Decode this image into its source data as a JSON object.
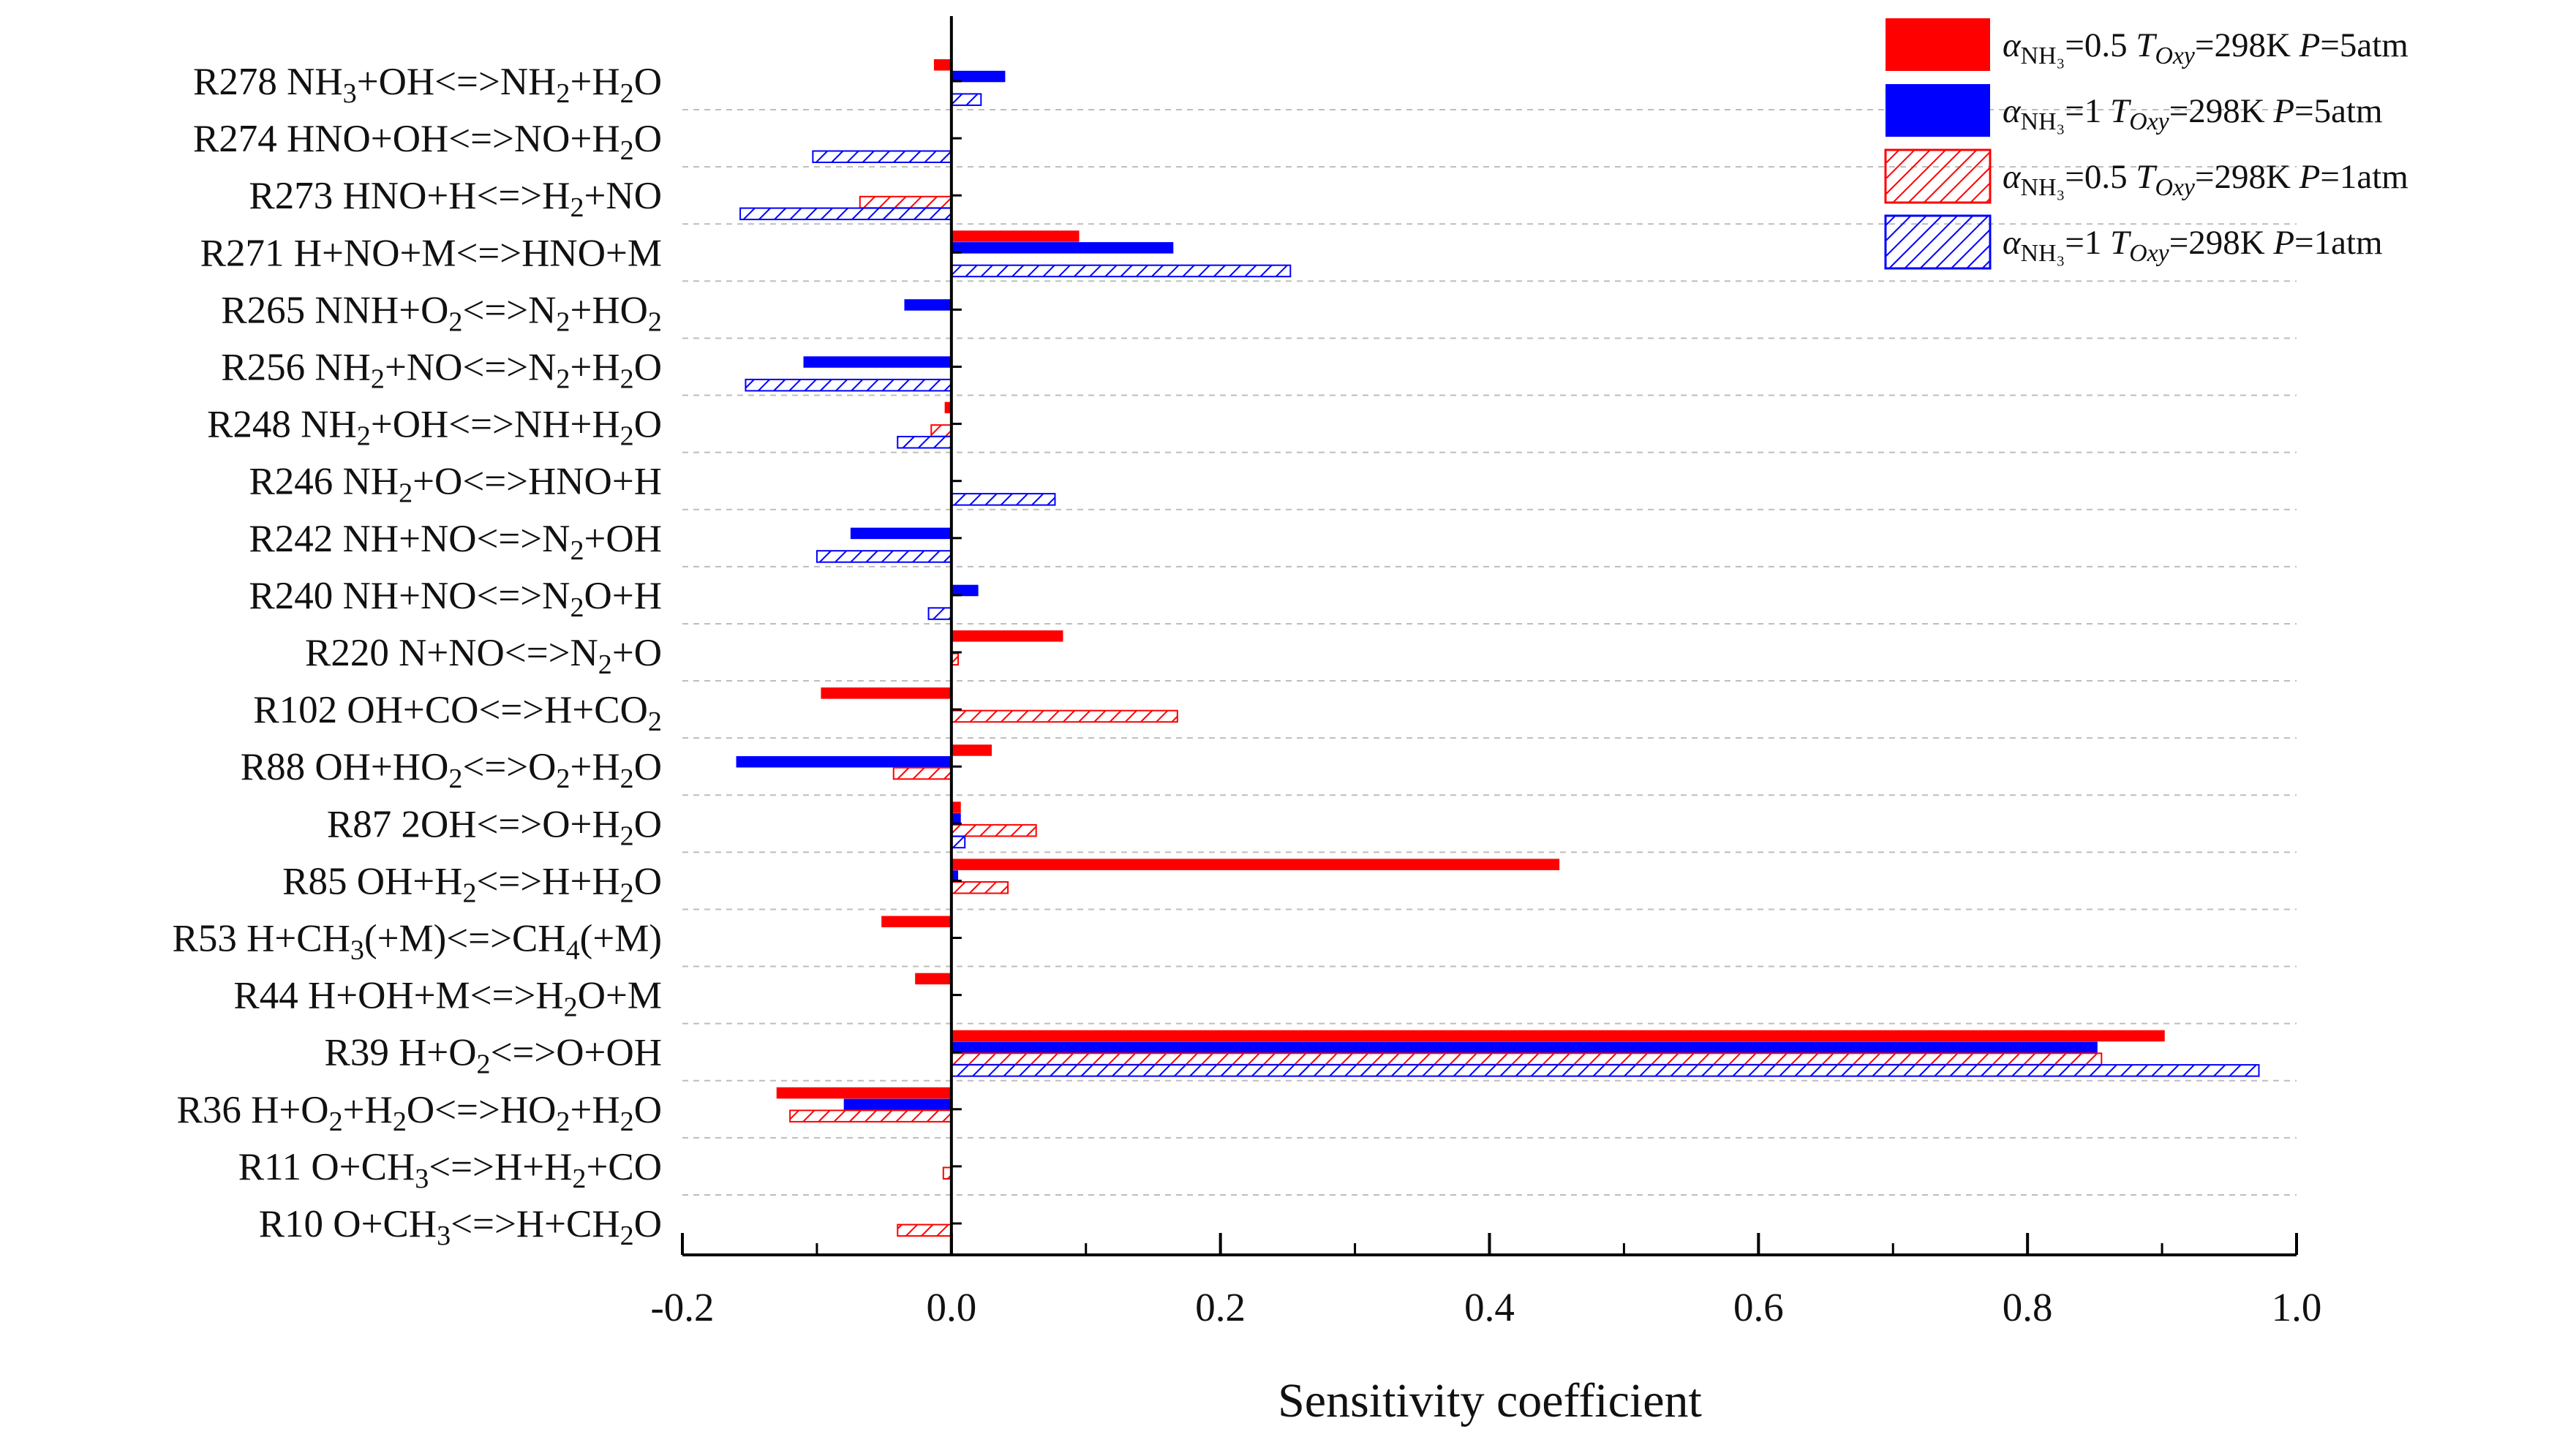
{
  "chart_data": {
    "type": "bar",
    "orientation": "horizontal",
    "xlabel": "Sensitivity coefficient",
    "xlim": [
      -0.2,
      1.0
    ],
    "xticks": [
      "-0.2",
      "0.0",
      "0.2",
      "0.4",
      "0.6",
      "0.8",
      "1.0"
    ],
    "grid": "dashed horizontal separators between reactions",
    "legend_position": "top-right",
    "categories": [
      "R278 NH3+OH<=>NH2+H2O",
      "R274 HNO+OH<=>NO+H2O",
      "R273 HNO+H<=>H2+NO",
      "R271 H+NO+M<=>HNO+M",
      "R265 NNH+O2<=>N2+HO2",
      "R256 NH2+NO<=>N2+H2O",
      "R248 NH2+OH<=>NH+H2O",
      "R246 NH2+O<=>HNO+H",
      "R242 NH+NO<=>N2+OH",
      "R240 NH+NO<=>N2O+H",
      "R220 N+NO<=>N2+O",
      "R102 OH+CO<=>H+CO2",
      "R88 OH+HO2<=>O2+H2O",
      "R87 2OH<=>O+H2O",
      "R85 OH+H2<=>H+H2O",
      "R53 H+CH3(+M)<=>CH4(+M)",
      "R44 H+OH+M<=>H2O+M",
      "R39 H+O2<=>O+OH",
      "R36 H+O2+H2O<=>HO2+H2O",
      "R11 O+CH3<=>H+H2+CO",
      "R10 O+CH3<=>H+CH2O"
    ],
    "category_labels": [
      [
        {
          "t": "R278 NH"
        },
        {
          "t": "3",
          "sub": true
        },
        {
          "t": "+OH<=>NH"
        },
        {
          "t": "2",
          "sub": true
        },
        {
          "t": "+H"
        },
        {
          "t": "2",
          "sub": true
        },
        {
          "t": "O"
        }
      ],
      [
        {
          "t": "R274 HNO+OH<=>NO+H"
        },
        {
          "t": "2",
          "sub": true
        },
        {
          "t": "O"
        }
      ],
      [
        {
          "t": "R273 HNO+H<=>H"
        },
        {
          "t": "2",
          "sub": true
        },
        {
          "t": "+NO"
        }
      ],
      [
        {
          "t": "R271 H+NO+M<=>HNO+M"
        }
      ],
      [
        {
          "t": "R265 NNH+O"
        },
        {
          "t": "2",
          "sub": true
        },
        {
          "t": "<=>N"
        },
        {
          "t": "2",
          "sub": true
        },
        {
          "t": "+HO"
        },
        {
          "t": "2",
          "sub": true
        }
      ],
      [
        {
          "t": "R256 NH"
        },
        {
          "t": "2",
          "sub": true
        },
        {
          "t": "+NO<=>N"
        },
        {
          "t": "2",
          "sub": true
        },
        {
          "t": "+H"
        },
        {
          "t": "2",
          "sub": true
        },
        {
          "t": "O"
        }
      ],
      [
        {
          "t": "R248 NH"
        },
        {
          "t": "2",
          "sub": true
        },
        {
          "t": "+OH<=>NH+H"
        },
        {
          "t": "2",
          "sub": true
        },
        {
          "t": "O"
        }
      ],
      [
        {
          "t": "R246 NH"
        },
        {
          "t": "2",
          "sub": true
        },
        {
          "t": "+O<=>HNO+H"
        }
      ],
      [
        {
          "t": "R242 NH+NO<=>N"
        },
        {
          "t": "2",
          "sub": true
        },
        {
          "t": "+OH"
        }
      ],
      [
        {
          "t": "R240 NH+NO<=>N"
        },
        {
          "t": "2",
          "sub": true
        },
        {
          "t": "O+H"
        }
      ],
      [
        {
          "t": "R220 N+NO<=>N"
        },
        {
          "t": "2",
          "sub": true
        },
        {
          "t": "+O"
        }
      ],
      [
        {
          "t": "R102 OH+CO<=>H+CO"
        },
        {
          "t": "2",
          "sub": true
        }
      ],
      [
        {
          "t": "R88 OH+HO"
        },
        {
          "t": "2",
          "sub": true
        },
        {
          "t": "<=>O"
        },
        {
          "t": "2",
          "sub": true
        },
        {
          "t": "+H"
        },
        {
          "t": "2",
          "sub": true
        },
        {
          "t": "O"
        }
      ],
      [
        {
          "t": "R87 2OH<=>O+H"
        },
        {
          "t": "2",
          "sub": true
        },
        {
          "t": "O"
        }
      ],
      [
        {
          "t": "R85 OH+H"
        },
        {
          "t": "2",
          "sub": true
        },
        {
          "t": "<=>H+H"
        },
        {
          "t": "2",
          "sub": true
        },
        {
          "t": "O"
        }
      ],
      [
        {
          "t": "R53 H+CH"
        },
        {
          "t": "3",
          "sub": true
        },
        {
          "t": "(+M)<=>CH"
        },
        {
          "t": "4",
          "sub": true
        },
        {
          "t": "(+M)"
        }
      ],
      [
        {
          "t": "R44 H+OH+M<=>H"
        },
        {
          "t": "2",
          "sub": true
        },
        {
          "t": "O+M"
        }
      ],
      [
        {
          "t": "R39 H+O"
        },
        {
          "t": "2",
          "sub": true
        },
        {
          "t": "<=>O+OH"
        }
      ],
      [
        {
          "t": "R36 H+O"
        },
        {
          "t": "2",
          "sub": true
        },
        {
          "t": "+H"
        },
        {
          "t": "2",
          "sub": true
        },
        {
          "t": "O<=>HO"
        },
        {
          "t": "2",
          "sub": true
        },
        {
          "t": "+H"
        },
        {
          "t": "2",
          "sub": true
        },
        {
          "t": "O"
        }
      ],
      [
        {
          "t": "R11 O+CH"
        },
        {
          "t": "3",
          "sub": true
        },
        {
          "t": "<=>H+H"
        },
        {
          "t": "2",
          "sub": true
        },
        {
          "t": "+CO"
        }
      ],
      [
        {
          "t": "R10 O+CH"
        },
        {
          "t": "3",
          "sub": true
        },
        {
          "t": "<=>H+CH"
        },
        {
          "t": "2",
          "sub": true
        },
        {
          "t": "O"
        }
      ]
    ],
    "series": [
      {
        "name": "αNH3=0.5 TOxy=298K P=5atm",
        "legend_label": [
          {
            "t": "α",
            "it": true
          },
          {
            "t": "NH₃",
            "sub": true
          },
          {
            "t": "=0.5 "
          },
          {
            "t": "T",
            "it": true
          },
          {
            "t": "Oxy",
            "sub": true,
            "it": true
          },
          {
            "t": "=298K "
          },
          {
            "t": "P",
            "it": true
          },
          {
            "t": "=5atm"
          }
        ],
        "color": "#ff0000",
        "fill": "solid",
        "values": [
          -0.013,
          null,
          null,
          0.095,
          null,
          null,
          -0.005,
          null,
          null,
          null,
          0.083,
          -0.097,
          0.03,
          0.007,
          0.452,
          -0.052,
          -0.027,
          0.902,
          -0.13,
          null,
          null
        ]
      },
      {
        "name": "αNH3=1 TOxy=298K P=5atm",
        "legend_label": [
          {
            "t": "α",
            "it": true
          },
          {
            "t": "NH₃",
            "sub": true
          },
          {
            "t": "=1 "
          },
          {
            "t": "T",
            "it": true
          },
          {
            "t": "Oxy",
            "sub": true,
            "it": true
          },
          {
            "t": "=298K "
          },
          {
            "t": "P",
            "it": true
          },
          {
            "t": "=5atm"
          }
        ],
        "color": "#0000ff",
        "fill": "solid",
        "values": [
          0.04,
          null,
          null,
          0.165,
          -0.035,
          -0.11,
          null,
          null,
          -0.075,
          0.02,
          null,
          null,
          -0.16,
          0.007,
          0.005,
          null,
          null,
          0.852,
          -0.08,
          null,
          null
        ]
      },
      {
        "name": "αNH3=0.5 TOxy=298K P=1atm",
        "legend_label": [
          {
            "t": "α",
            "it": true
          },
          {
            "t": "NH₃",
            "sub": true
          },
          {
            "t": "=0.5 "
          },
          {
            "t": "T",
            "it": true
          },
          {
            "t": "Oxy",
            "sub": true,
            "it": true
          },
          {
            "t": "=298K "
          },
          {
            "t": "P",
            "it": true
          },
          {
            "t": "=1atm"
          }
        ],
        "color": "#ff0000",
        "fill": "hatched",
        "values": [
          null,
          null,
          -0.068,
          null,
          null,
          null,
          -0.015,
          null,
          null,
          null,
          0.005,
          0.168,
          -0.043,
          0.063,
          0.042,
          null,
          null,
          0.855,
          -0.12,
          -0.006,
          -0.04
        ]
      },
      {
        "name": "αNH3=1 TOxy=298K P=1atm",
        "legend_label": [
          {
            "t": "α",
            "it": true
          },
          {
            "t": "NH₃",
            "sub": true
          },
          {
            "t": "=1 "
          },
          {
            "t": "T",
            "it": true
          },
          {
            "t": "Oxy",
            "sub": true,
            "it": true
          },
          {
            "t": "=298K "
          },
          {
            "t": "P",
            "it": true
          },
          {
            "t": "=1atm"
          }
        ],
        "color": "#0000ff",
        "fill": "hatched",
        "values": [
          0.022,
          -0.103,
          -0.157,
          0.252,
          null,
          -0.153,
          -0.04,
          0.077,
          -0.1,
          -0.017,
          null,
          null,
          null,
          0.01,
          null,
          null,
          null,
          0.972,
          null,
          null,
          null
        ]
      }
    ]
  }
}
